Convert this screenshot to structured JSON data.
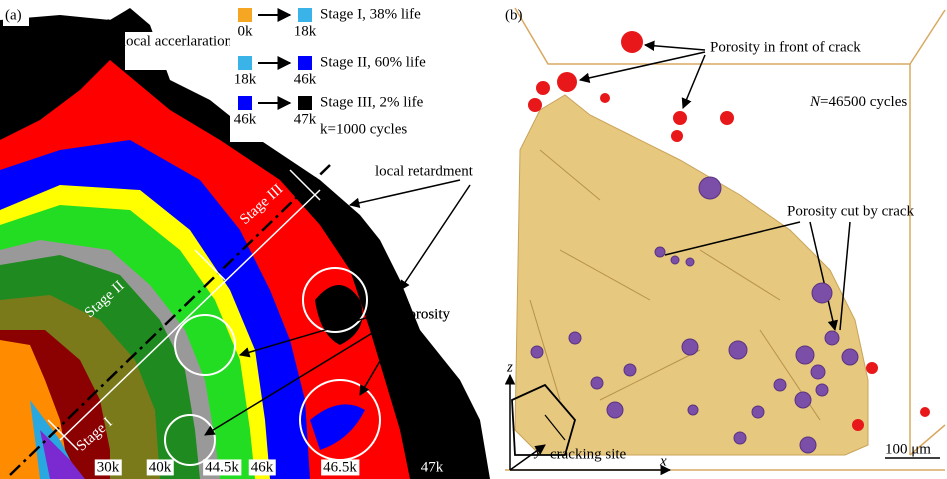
{
  "panel_a": {
    "label": "(a)",
    "annotation_acceleration": "local accerlaration",
    "annotation_retardment": "local retardment",
    "annotation_porosity": "Porosity",
    "legend": [
      {
        "from": "0k",
        "to": "18k",
        "text": "Stage I, 38% life"
      },
      {
        "from": "18k",
        "to": "46k",
        "text": "Stage II, 60% life"
      },
      {
        "from": "46k",
        "to": "47k",
        "text": "Stage III, 2% life"
      }
    ],
    "legend_note": "k=1000 cycles",
    "stage_labels": [
      "Stage III",
      "Stage II",
      "Stage I"
    ],
    "contour_labels": [
      "30k",
      "40k",
      "44.5k",
      "46k",
      "46.5k",
      "47k"
    ]
  },
  "panel_b": {
    "label": "(b)",
    "annotation_front": "Porosity in front of crack",
    "cycles_symbol": "N",
    "cycles_text": "=46500 cycles",
    "annotation_cut": "Porosity cut by crack",
    "axis_z": "z",
    "axis_y": "y",
    "axis_x": "x",
    "cracking_site": "cracking site",
    "scale_bar": "100 μm"
  }
}
